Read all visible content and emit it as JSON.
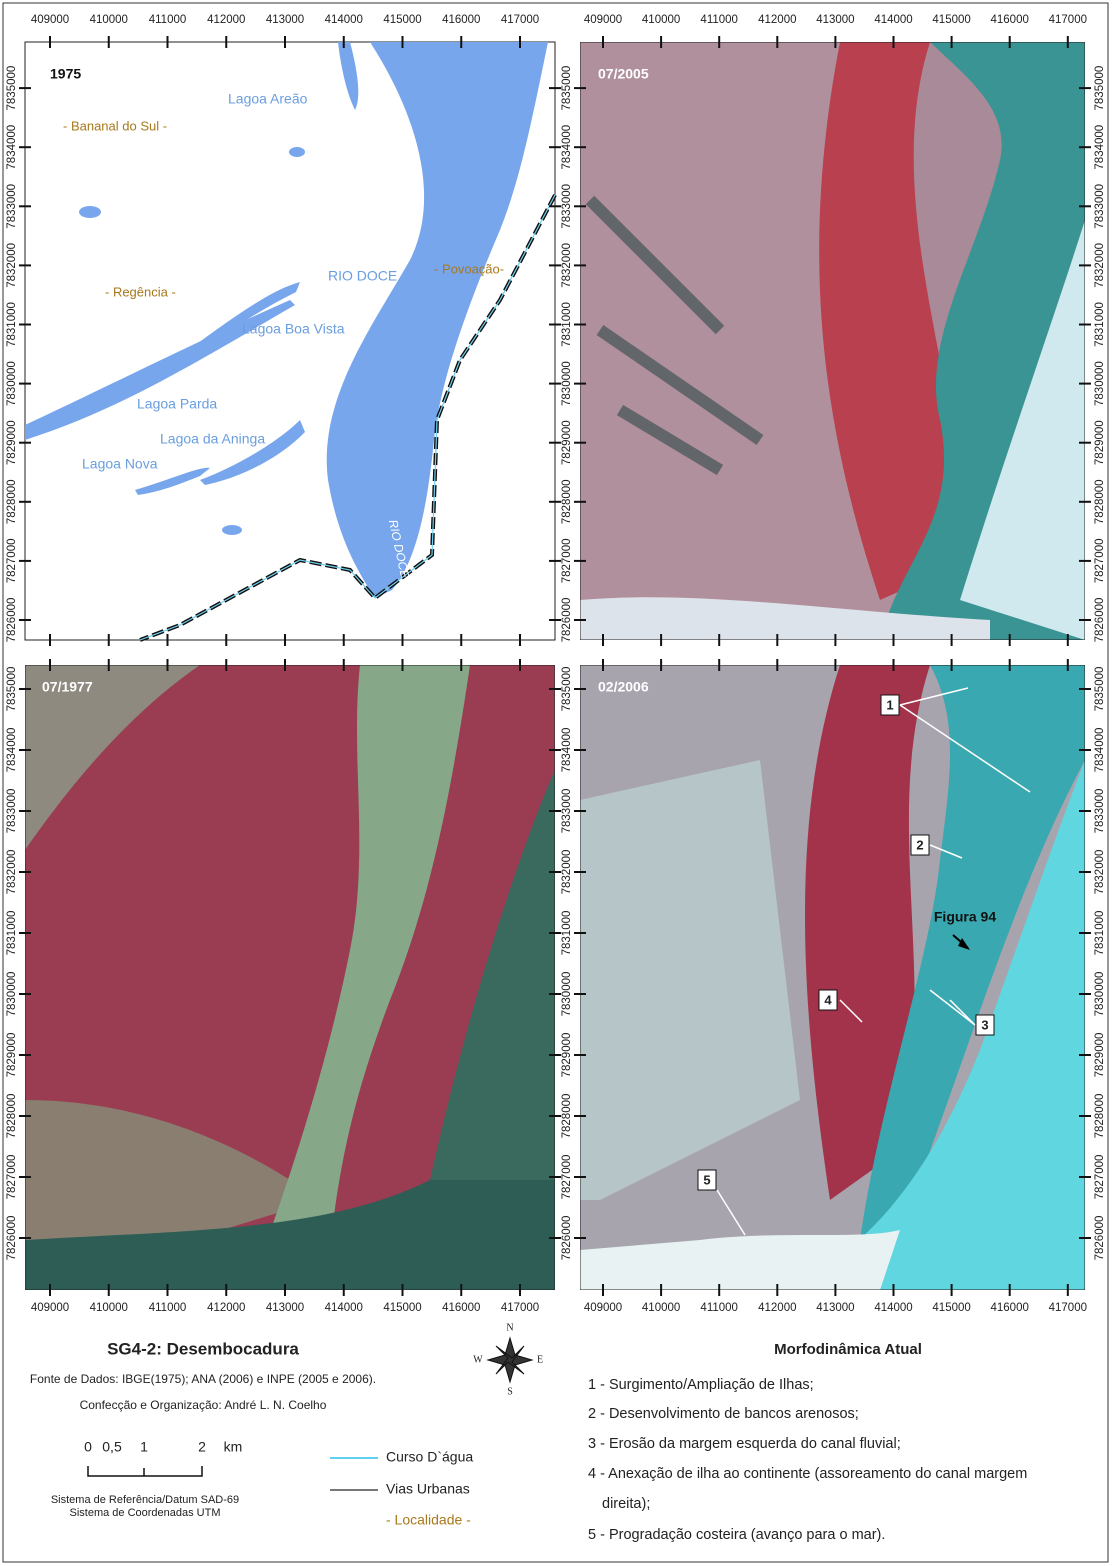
{
  "x_ticks": [
    409000,
    410000,
    411000,
    412000,
    413000,
    414000,
    415000,
    416000,
    417000
  ],
  "y_ticks": [
    7826000,
    7827000,
    7828000,
    7829000,
    7830000,
    7831000,
    7832000,
    7833000,
    7834000,
    7835000
  ],
  "panels": [
    {
      "label": "1975"
    },
    {
      "label": "07/2005"
    },
    {
      "label": "07/1977"
    },
    {
      "label": "02/2006"
    }
  ],
  "map_labels": {
    "localities": [
      "- Bananal do Sul -",
      "- Regência -",
      "- Povoação-"
    ],
    "water": [
      "Lagoa Areão",
      "RIO DOCE",
      "Lagoa Boa Vista",
      "Lagoa Parda",
      "Lagoa da Aninga",
      "Lagoa Nova",
      "RIO DOCE"
    ]
  },
  "callouts": [
    "1",
    "2",
    "3",
    "4",
    "5"
  ],
  "figure_ref": "Figura 94",
  "footer": {
    "title": "SG4-2: Desembocadura",
    "source": "Fonte de Dados: IBGE(1975); ANA (2006) e INPE (2005 e 2006).",
    "author": "Confecção e Organização: André L. N. Coelho",
    "scale": [
      "0",
      "0,5",
      "1",
      "2",
      "km"
    ],
    "reference": [
      "Sistema de Referência/Datum SAD-69",
      "Sistema de Coordenadas UTM"
    ],
    "compass": [
      "N",
      "S",
      "E",
      "W"
    ],
    "legend": [
      "Curso D`água",
      "Vias Urbanas",
      "- Localidade -"
    ],
    "morpho_title": "Morfodinâmica Atual",
    "morpho_items": [
      "1 - Surgimento/Ampliação de Ilhas;",
      "2 - Desenvolvimento de bancos arenosos;",
      "3 - Erosão da margem esquerda do canal fluvial;",
      "4 - Anexação de ilha ao continente (assoreamento do canal margem",
      "direita);",
      "5 - Progradação costeira (avanço para o mar)."
    ]
  }
}
